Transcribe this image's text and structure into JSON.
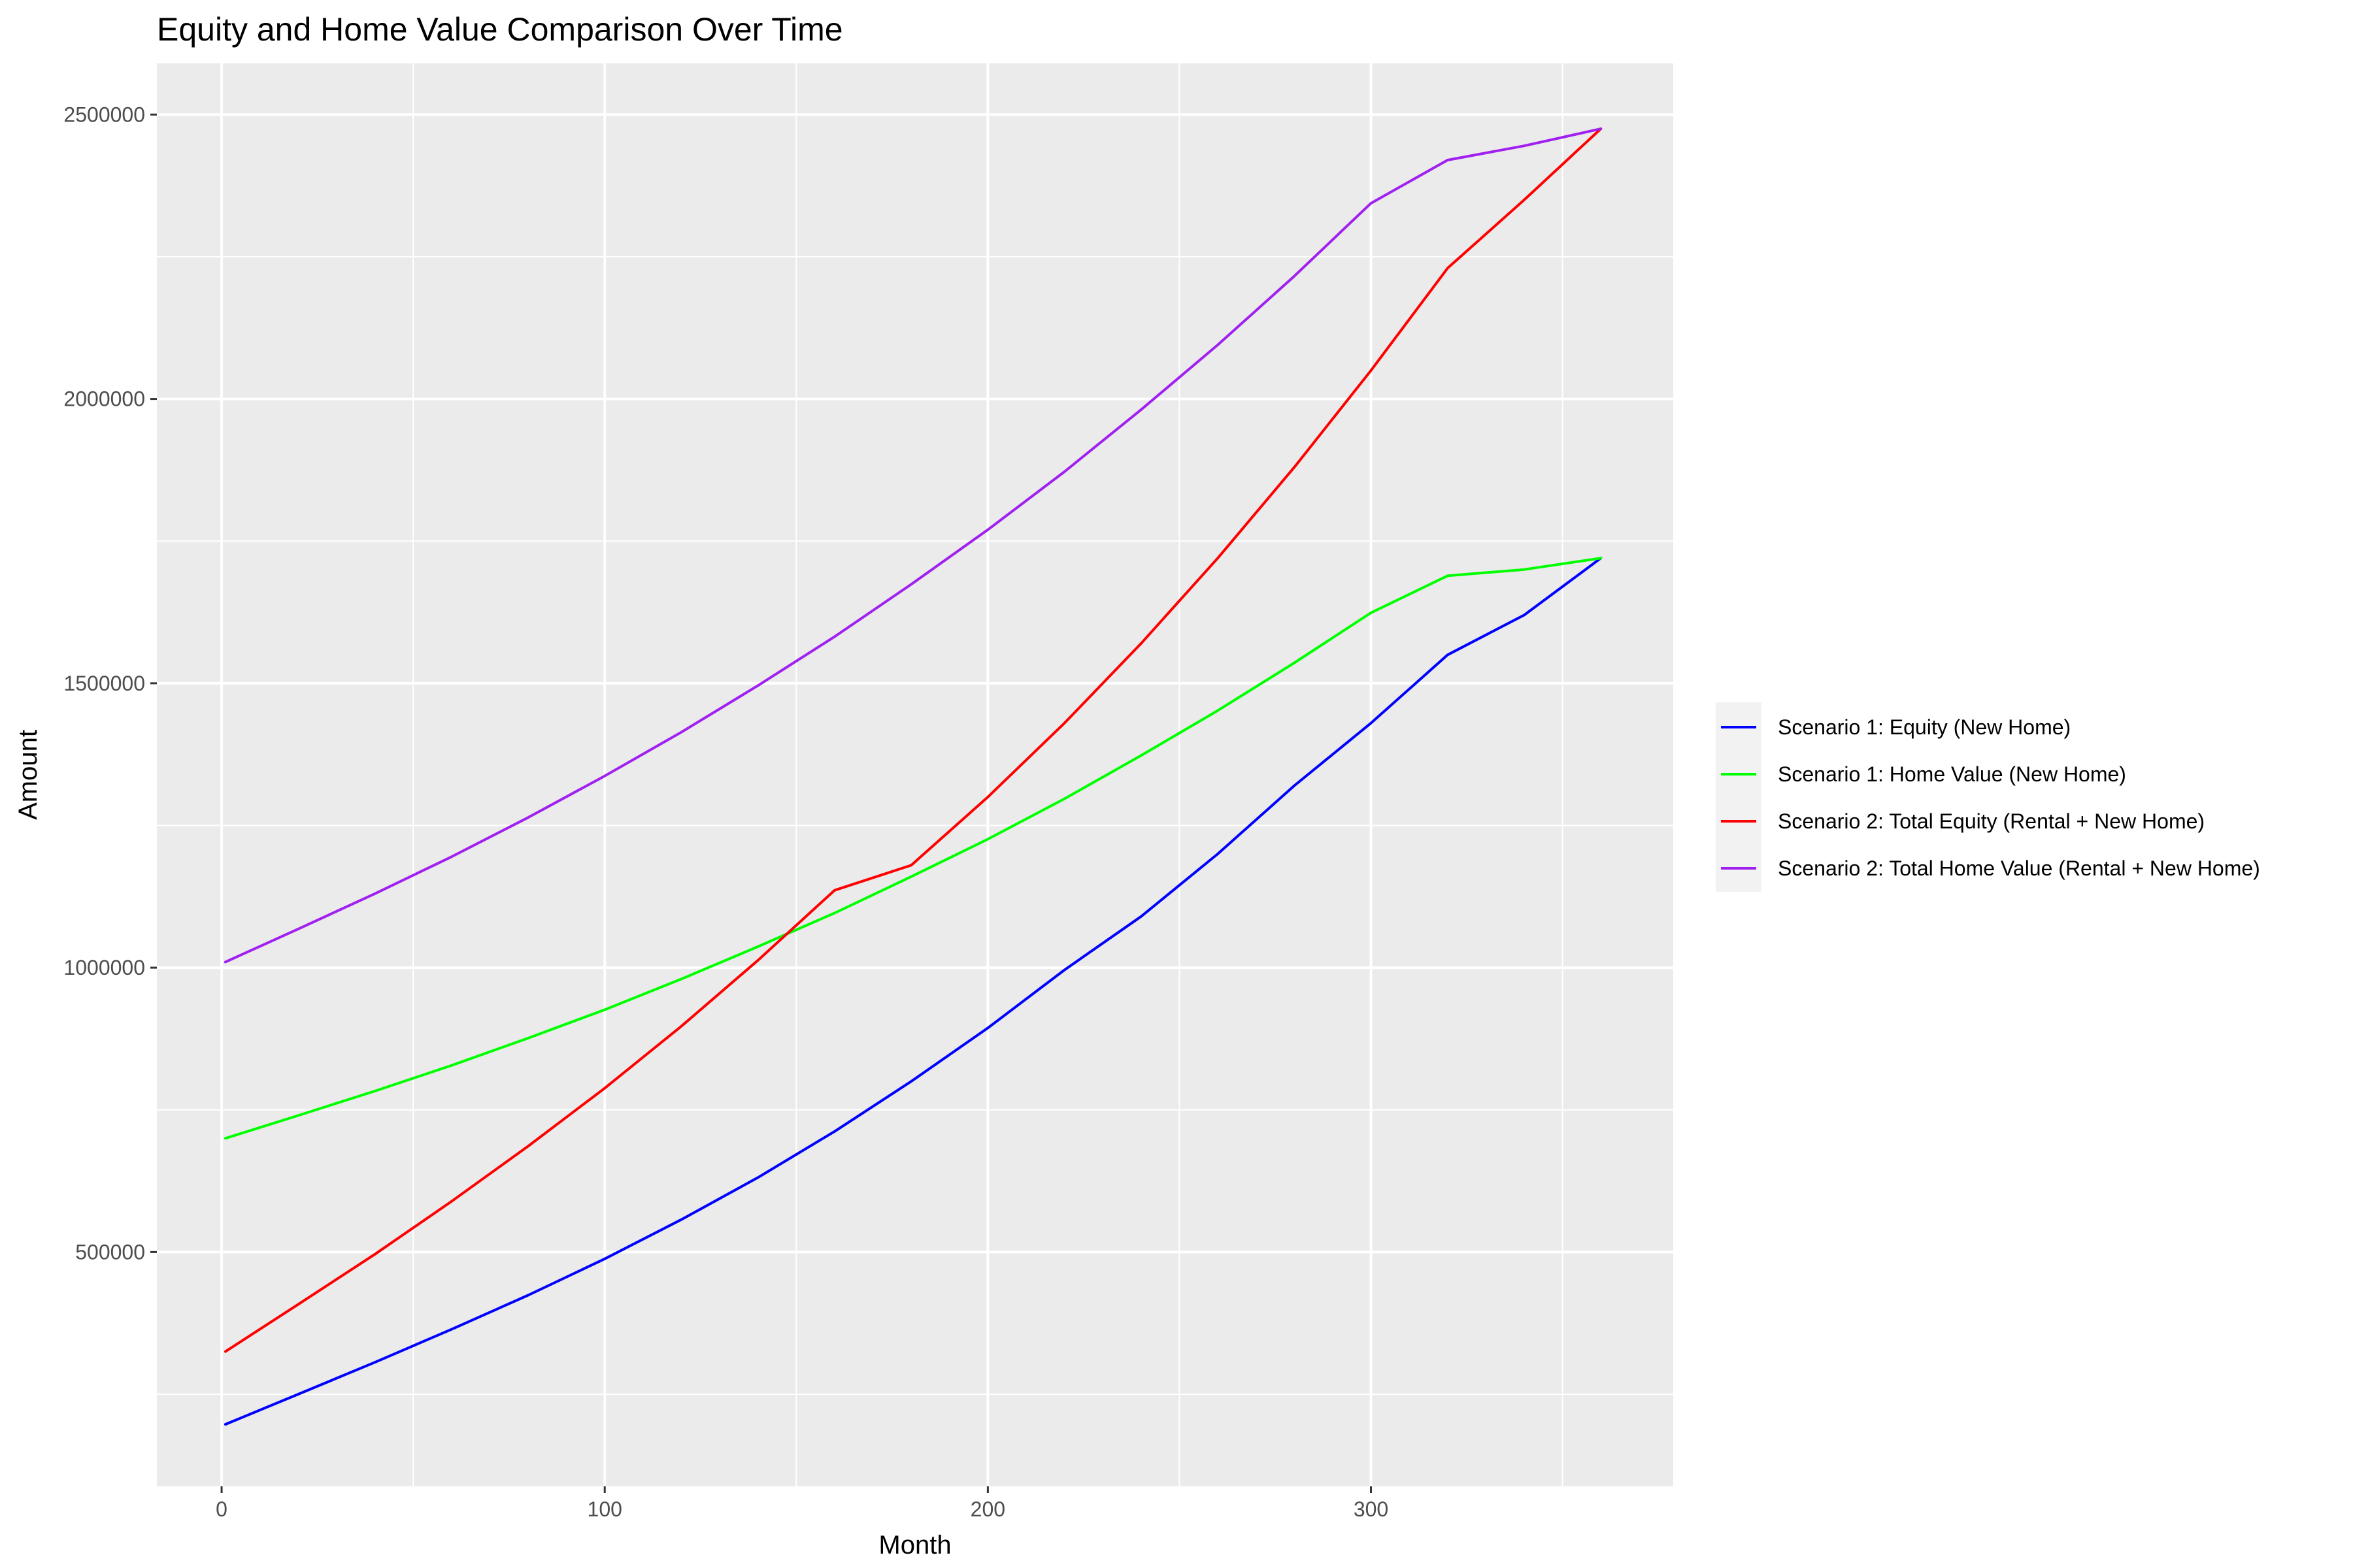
{
  "chart_data": {
    "type": "line",
    "title": "Equity and Home Value Comparison Over Time",
    "xlabel": "Month",
    "ylabel": "Amount",
    "xlim": [
      -16.9,
      378.9
    ],
    "ylim": [
      88000,
      2590000
    ],
    "xticks": [
      0,
      100,
      200,
      300
    ],
    "xtick_labels": [
      "0",
      "100",
      "200",
      "300"
    ],
    "yticks": [
      500000,
      1000000,
      1500000,
      2000000,
      2500000
    ],
    "ytick_labels": [
      "500000",
      "1000000",
      "1500000",
      "2000000",
      "2500000"
    ],
    "grid": true,
    "legend_position": "right",
    "x": [
      1,
      20,
      40,
      60,
      80,
      100,
      120,
      140,
      160,
      180,
      200,
      220,
      240,
      260,
      280,
      300,
      320,
      340,
      360
    ],
    "series": [
      {
        "name": "Scenario 1: Equity (New Home)",
        "color": "#0000FF",
        "values": [
          197000,
          250000,
          306000,
          364000,
          424000,
          488000,
          557000,
          631000,
          712000,
          800000,
          894000,
          996000,
          1090000,
          1200000,
          1320000,
          1430000,
          1550000,
          1620000,
          1720000
        ]
      },
      {
        "name": "Scenario 1: Home Value (New Home)",
        "color": "#00FF00",
        "values": [
          700000,
          740000,
          783000,
          828000,
          876000,
          926000,
          980000,
          1037000,
          1096000,
          1160000,
          1226000,
          1297000,
          1373000,
          1452000,
          1536000,
          1624000,
          1689000,
          1700000,
          1720000
        ]
      },
      {
        "name": "Scenario 2: Total Equity (Rental + New Home)",
        "color": "#FF0000",
        "values": [
          325000,
          408000,
          496000,
          589000,
          686000,
          788000,
          897000,
          1013000,
          1136000,
          1180000,
          1300000,
          1430000,
          1570000,
          1720000,
          1880000,
          2050000,
          2230000,
          2350000,
          2475000
        ]
      },
      {
        "name": "Scenario 2: Total Home Value (Rental + New Home)",
        "color": "#A020F0",
        "values": [
          1010000,
          1068000,
          1130000,
          1195000,
          1264000,
          1337000,
          1414000,
          1496000,
          1582000,
          1674000,
          1770000,
          1872000,
          1981000,
          2095000,
          2216000,
          2344000,
          2420000,
          2445000,
          2475000
        ]
      }
    ]
  }
}
